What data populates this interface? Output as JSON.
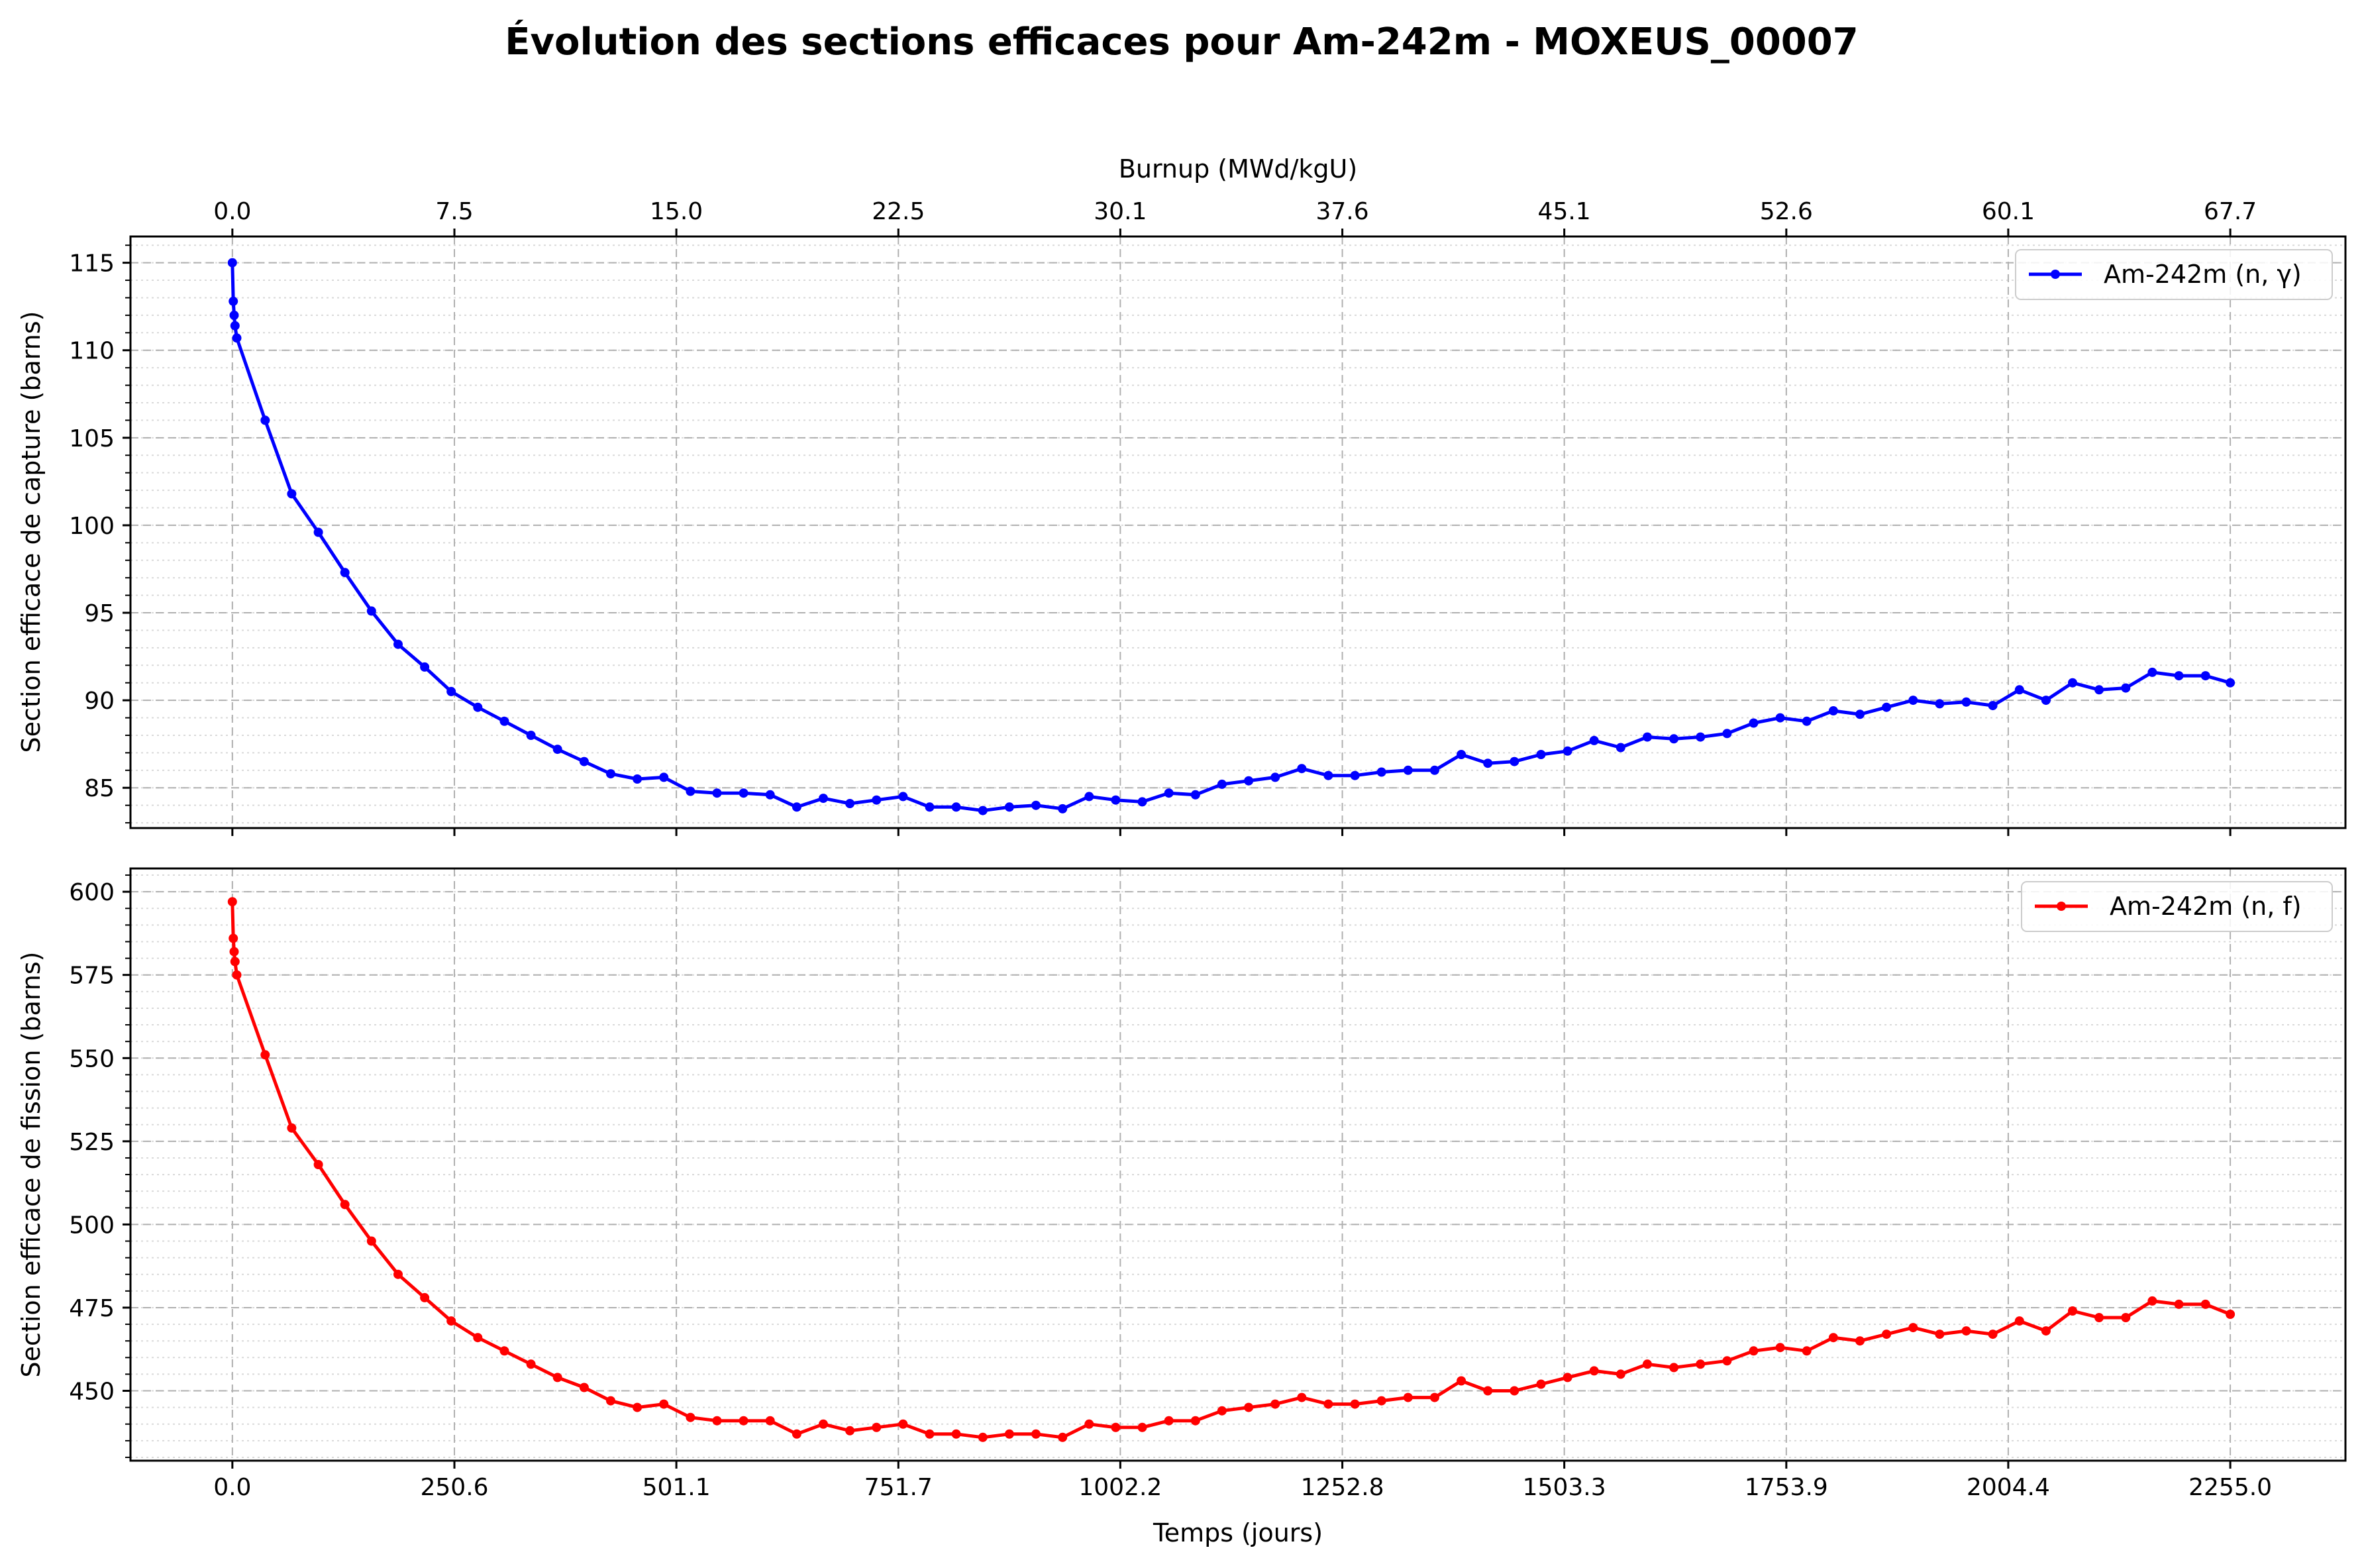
{
  "figure": {
    "title": "Évolution des sections efficaces pour Am-242m - MOXEUS_00007"
  },
  "colors": {
    "capture": "#0000ff",
    "fission": "#ff0000",
    "major_grid": "#b0b0b0",
    "minor_grid": "#d9d9d9"
  },
  "chart_data": [
    {
      "type": "line",
      "panel": "top",
      "title": "",
      "xlabel_top": "Burnup (MWd/kgU)",
      "ylabel": "Section efficace de capture (barns)",
      "xlim": [
        -115,
        2385
      ],
      "ylim": [
        82.7,
        116.5
      ],
      "x_ticks": [
        0.0,
        250.6,
        501.1,
        751.7,
        1002.2,
        1252.8,
        1503.3,
        1753.9,
        2004.4,
        2255.0
      ],
      "top_tick_labels": [
        "0.0",
        "7.5",
        "15.0",
        "22.5",
        "30.1",
        "37.6",
        "45.1",
        "52.6",
        "60.1",
        "67.7"
      ],
      "y_ticks": [
        85,
        90,
        95,
        100,
        105,
        110,
        115
      ],
      "y_tick_labels": [
        "85",
        "90",
        "95",
        "100",
        "105",
        "110",
        "115"
      ],
      "legend_position": "upper-right",
      "grid": true,
      "series": [
        {
          "name": "Am-242m (n, γ)",
          "x": [
            0,
            1,
            2,
            3,
            5,
            37,
            67,
            97,
            127,
            157,
            187,
            217,
            247,
            277,
            307,
            337,
            367,
            397,
            427,
            457,
            487,
            517,
            547,
            577,
            607,
            637,
            667,
            697,
            727,
            757,
            787,
            817,
            847,
            877,
            907,
            937,
            967,
            997,
            1027,
            1057,
            1087,
            1117,
            1147,
            1177,
            1207,
            1237,
            1267,
            1297,
            1327,
            1357,
            1387,
            1417,
            1447,
            1477,
            1507,
            1537,
            1567,
            1597,
            1627,
            1657,
            1687,
            1717,
            1747,
            1777,
            1807,
            1837,
            1867,
            1897,
            1927,
            1957,
            1987,
            2017,
            2047,
            2077,
            2107,
            2137,
            2167,
            2197,
            2227,
            2255
          ],
          "y": [
            115.0,
            112.8,
            112.0,
            111.4,
            110.7,
            106.0,
            101.8,
            99.6,
            97.3,
            95.1,
            93.2,
            91.9,
            90.5,
            89.6,
            88.8,
            88.0,
            87.2,
            86.5,
            85.8,
            85.5,
            85.6,
            84.8,
            84.7,
            84.7,
            84.6,
            83.9,
            84.4,
            84.1,
            84.3,
            84.5,
            83.9,
            83.9,
            83.7,
            83.9,
            84.0,
            83.8,
            84.5,
            84.3,
            84.2,
            84.7,
            84.6,
            85.2,
            85.4,
            85.6,
            86.1,
            85.7,
            85.7,
            85.9,
            86.0,
            86.0,
            86.9,
            86.4,
            86.5,
            86.9,
            87.1,
            87.7,
            87.3,
            87.9,
            87.8,
            87.9,
            88.1,
            88.7,
            89.0,
            88.8,
            89.4,
            89.2,
            89.6,
            90.0,
            89.8,
            89.9,
            89.7,
            90.6,
            90.0,
            91.0,
            90.6,
            90.7,
            91.6,
            91.4,
            91.4,
            91.0
          ]
        }
      ]
    },
    {
      "type": "line",
      "panel": "bottom",
      "title": "",
      "xlabel": "Temps (jours)",
      "ylabel": "Section efficace de fission (barns)",
      "xlim": [
        -115,
        2385
      ],
      "ylim": [
        429,
        607
      ],
      "x_ticks": [
        0.0,
        250.6,
        501.1,
        751.7,
        1002.2,
        1252.8,
        1503.3,
        1753.9,
        2004.4,
        2255.0
      ],
      "x_tick_labels": [
        "0.0",
        "250.6",
        "501.1",
        "751.7",
        "1002.2",
        "1252.8",
        "1503.3",
        "1753.9",
        "2004.4",
        "2255.0"
      ],
      "y_ticks": [
        450,
        475,
        500,
        525,
        550,
        575,
        600
      ],
      "y_tick_labels": [
        "450",
        "475",
        "500",
        "525",
        "550",
        "575",
        "600"
      ],
      "legend_position": "upper-right",
      "grid": true,
      "series": [
        {
          "name": "Am-242m (n, f)",
          "x": [
            0,
            1,
            2,
            3,
            5,
            37,
            67,
            97,
            127,
            157,
            187,
            217,
            247,
            277,
            307,
            337,
            367,
            397,
            427,
            457,
            487,
            517,
            547,
            577,
            607,
            637,
            667,
            697,
            727,
            757,
            787,
            817,
            847,
            877,
            907,
            937,
            967,
            997,
            1027,
            1057,
            1087,
            1117,
            1147,
            1177,
            1207,
            1237,
            1267,
            1297,
            1327,
            1357,
            1387,
            1417,
            1447,
            1477,
            1507,
            1537,
            1567,
            1597,
            1627,
            1657,
            1687,
            1717,
            1747,
            1777,
            1807,
            1837,
            1867,
            1897,
            1927,
            1957,
            1987,
            2017,
            2047,
            2077,
            2107,
            2137,
            2167,
            2197,
            2227,
            2255
          ],
          "y": [
            597,
            586,
            582,
            579,
            575,
            551,
            529,
            518,
            506,
            495,
            485,
            478,
            471,
            466,
            462,
            458,
            454,
            451,
            447,
            445,
            446,
            442,
            441,
            441,
            441,
            437,
            440,
            438,
            439,
            440,
            437,
            437,
            436,
            437,
            437,
            436,
            440,
            439,
            439,
            441,
            441,
            444,
            445,
            446,
            448,
            446,
            446,
            447,
            448,
            448,
            453,
            450,
            450,
            452,
            454,
            456,
            455,
            458,
            457,
            458,
            459,
            462,
            463,
            462,
            466,
            465,
            467,
            469,
            467,
            468,
            467,
            471,
            468,
            474,
            472,
            472,
            477,
            476,
            476,
            473
          ]
        }
      ]
    }
  ]
}
